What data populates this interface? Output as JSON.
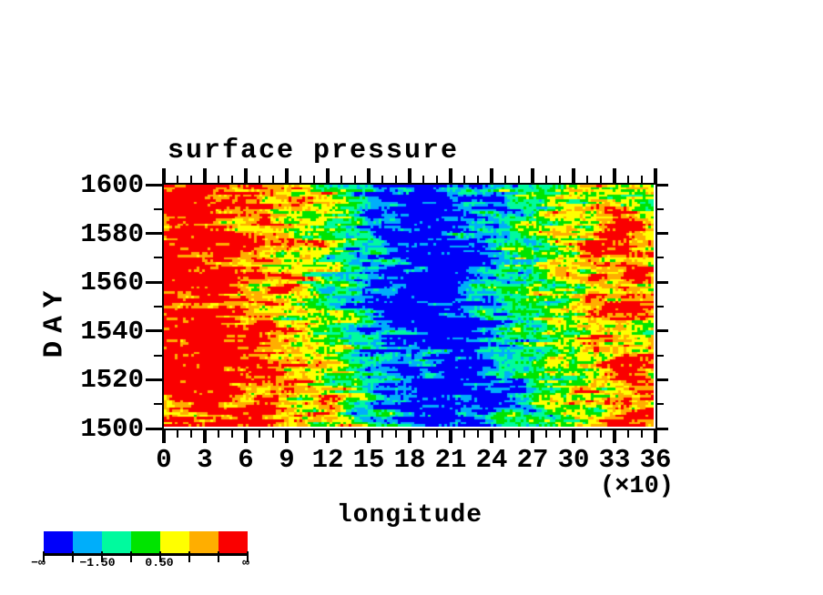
{
  "figure": {
    "title": "surface pressure",
    "x_axis": {
      "label": "longitude",
      "scale_note": "(×10)",
      "tick_labels": [
        "0",
        "3",
        "6",
        "9",
        "12",
        "15",
        "18",
        "21",
        "24",
        "27",
        "30",
        "33",
        "36"
      ]
    },
    "y_axis": {
      "label": "DAY",
      "tick_labels": [
        "1600",
        "1580",
        "1560",
        "1540",
        "1520",
        "1500"
      ]
    },
    "colorbar": {
      "colors": [
        "#0000fa",
        "#00aefa",
        "#00fa9e",
        "#00e400",
        "#ffff00",
        "#ffae00",
        "#fa0000"
      ],
      "labels": [
        "−∞",
        "−1.50",
        "0.50",
        "∞"
      ]
    }
  },
  "chart_data": {
    "type": "heatmap",
    "title": "surface pressure",
    "xlabel": "longitude (×10)",
    "ylabel": "DAY",
    "x_range": [
      0,
      360
    ],
    "y_range": [
      1500,
      1600
    ],
    "x_major_tick_values": [
      0,
      3,
      6,
      9,
      12,
      15,
      18,
      21,
      24,
      27,
      30,
      33,
      36
    ],
    "y_major_tick_values": [
      1600,
      1580,
      1560,
      1540,
      1520,
      1500
    ],
    "levels": [
      -2.5,
      -1.5,
      -0.5,
      0.5,
      1.5,
      2.5
    ],
    "level_labels": {
      "-1.50": "between colors 2 and 3",
      "0.50": "between colors 4 and 5",
      "ends": "−∞ left, ∞ right"
    },
    "palette": [
      "#0000fa",
      "#00aefa",
      "#00fa9e",
      "#00e400",
      "#ffff00",
      "#ffae00",
      "#fa0000"
    ],
    "grid": true,
    "legend_position": "bottom-left colorbar",
    "field_lons": [
      0,
      20,
      40,
      60,
      80,
      100,
      120,
      140,
      160,
      180,
      200,
      220,
      240,
      260,
      280,
      300,
      320,
      340,
      360
    ],
    "field_days": [
      1600,
      1590,
      1580,
      1570,
      1560,
      1550,
      1540,
      1530,
      1520,
      1510,
      1500
    ],
    "field": [
      [
        2.8,
        2.9,
        2.7,
        2.3,
        1.6,
        1.0,
        0.3,
        -0.8,
        -1.8,
        -2.4,
        -2.6,
        -2.2,
        -1.4,
        -0.6,
        0.0,
        0.3,
        0.6,
        0.2,
        0.5
      ],
      [
        2.9,
        2.8,
        2.4,
        1.8,
        1.4,
        1.6,
        0.6,
        -0.4,
        -1.5,
        -2.6,
        -2.8,
        -2.4,
        -1.8,
        -1.0,
        -0.4,
        0.4,
        1.2,
        1.5,
        0.8
      ],
      [
        2.6,
        2.8,
        2.9,
        2.4,
        1.8,
        1.2,
        0.4,
        -1.0,
        -2.0,
        -2.8,
        -2.6,
        -2.0,
        -1.2,
        -0.2,
        0.2,
        0.8,
        1.8,
        2.2,
        1.4
      ],
      [
        2.9,
        2.6,
        2.2,
        1.6,
        1.2,
        0.8,
        0.2,
        -0.8,
        -1.6,
        -2.2,
        -2.8,
        -2.6,
        -1.6,
        -0.6,
        0.0,
        0.8,
        2.0,
        2.9,
        2.4
      ],
      [
        2.8,
        2.9,
        2.6,
        2.0,
        1.2,
        0.6,
        -0.2,
        -1.2,
        -2.4,
        -2.9,
        -2.6,
        -2.0,
        -1.0,
        -0.4,
        0.2,
        0.6,
        1.2,
        1.6,
        1.0
      ],
      [
        2.9,
        2.8,
        2.4,
        1.8,
        1.4,
        0.8,
        0.0,
        -1.0,
        -2.0,
        -2.6,
        -2.9,
        -2.4,
        -1.4,
        -0.6,
        0.0,
        0.8,
        1.6,
        2.6,
        1.8
      ],
      [
        2.6,
        2.9,
        2.8,
        2.2,
        1.6,
        1.0,
        0.2,
        -0.6,
        -1.4,
        -2.2,
        -2.8,
        -2.6,
        -1.8,
        -0.8,
        -0.2,
        0.4,
        1.0,
        1.4,
        0.8
      ],
      [
        2.9,
        2.8,
        2.9,
        2.4,
        1.8,
        1.0,
        0.4,
        -0.8,
        -1.8,
        -2.4,
        -2.6,
        -2.2,
        -1.4,
        -0.6,
        0.2,
        0.6,
        1.4,
        2.4,
        2.0
      ],
      [
        2.4,
        2.6,
        2.8,
        2.0,
        1.6,
        1.2,
        0.6,
        -0.4,
        -1.4,
        -2.0,
        -2.6,
        -2.8,
        -2.0,
        -1.0,
        -0.2,
        0.4,
        1.0,
        1.6,
        1.2
      ],
      [
        2.2,
        2.6,
        2.4,
        2.2,
        1.8,
        1.0,
        0.8,
        0.0,
        -1.0,
        -1.8,
        -2.4,
        -2.6,
        -2.2,
        -1.2,
        -0.4,
        0.2,
        0.8,
        1.2,
        1.8
      ],
      [
        1.8,
        2.4,
        2.6,
        2.4,
        2.0,
        1.4,
        0.6,
        -0.2,
        -1.2,
        -2.0,
        -2.8,
        -2.4,
        -1.8,
        -0.8,
        0.0,
        0.6,
        1.2,
        2.0,
        2.4
      ]
    ]
  }
}
